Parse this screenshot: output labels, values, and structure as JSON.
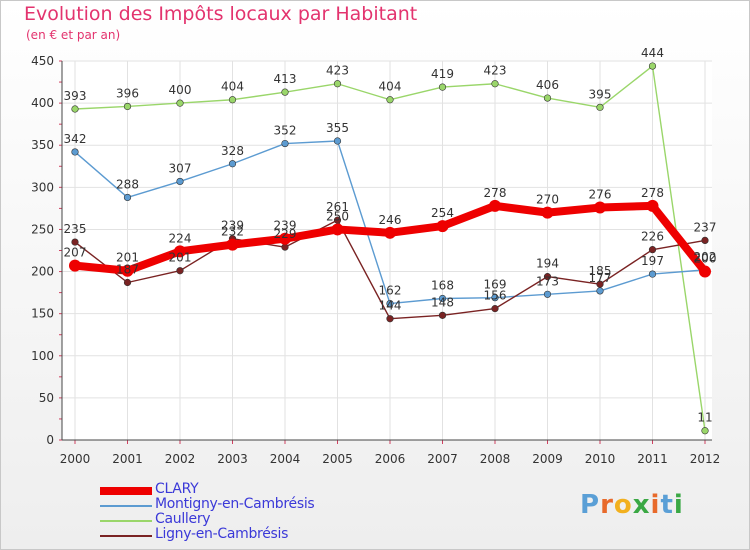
{
  "header": {
    "title": "Evolution des Impôts locaux par Habitant",
    "subtitle": "(en € et par an)"
  },
  "brand": {
    "text": "Proxiti",
    "letter_colors": [
      "#5a9fd6",
      "#e86a2b",
      "#f2b01e",
      "#3aa844",
      "#e86a2b",
      "#5a9fd6",
      "#3aa844"
    ]
  },
  "chart_data": {
    "type": "line",
    "title": "Evolution des Impôts locaux par Habitant",
    "subtitle": "(en € et par an)",
    "xlabel": "",
    "ylabel": "",
    "categories": [
      "2000",
      "2001",
      "2002",
      "2003",
      "2004",
      "2005",
      "2006",
      "2007",
      "2008",
      "2009",
      "2010",
      "2011",
      "2012"
    ],
    "ylim": [
      0,
      450
    ],
    "yticks": [
      0,
      50,
      100,
      150,
      200,
      250,
      300,
      350,
      400,
      450
    ],
    "grid": true,
    "legend_position": "bottom-left",
    "series": [
      {
        "name": "CLARY",
        "color": "#ee0000",
        "values": [
          207,
          201,
          224,
          232,
          239,
          250,
          246,
          254,
          278,
          270,
          276,
          278,
          200
        ],
        "labels": [
          "207",
          "201",
          "224",
          "232",
          "239",
          "250",
          "246",
          "254",
          "278",
          "270",
          "276",
          "278",
          "200"
        ]
      },
      {
        "name": "Montigny-en-Cambrésis",
        "color": "#5c9bd1",
        "values": [
          342,
          288,
          307,
          328,
          352,
          355,
          162,
          168,
          169,
          173,
          177,
          197,
          202
        ],
        "labels": [
          "342",
          "288",
          "307",
          "328",
          "352",
          "355",
          "162",
          "168",
          "169",
          "173",
          "177",
          "197",
          "202"
        ]
      },
      {
        "name": "Caullery",
        "color": "#9ad66a",
        "values": [
          393,
          396,
          400,
          404,
          413,
          423,
          404,
          419,
          423,
          406,
          395,
          444,
          11
        ],
        "labels": [
          "393",
          "396",
          "400",
          "404",
          "413",
          "423",
          "404",
          "419",
          "423",
          "406",
          "395",
          "444",
          "11"
        ]
      },
      {
        "name": "Ligny-en-Cambrésis",
        "color": "#7a2323",
        "values": [
          235,
          187,
          201,
          239,
          229,
          261,
          144,
          148,
          156,
          194,
          185,
          226,
          237
        ],
        "labels": [
          "235",
          "187",
          "201",
          "239",
          "229",
          "261",
          "144",
          "148",
          "156",
          "194",
          "185",
          "226",
          "237"
        ]
      }
    ]
  }
}
